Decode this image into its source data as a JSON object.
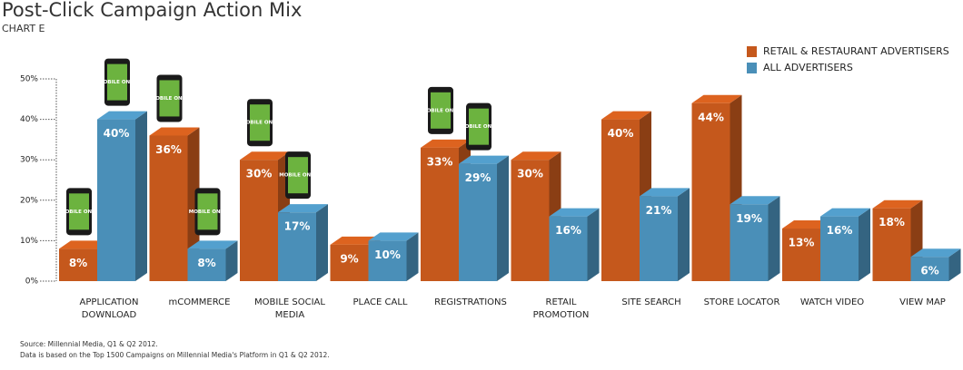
{
  "chart_data": {
    "type": "bar3d",
    "title": "Post-Click Campaign Action Mix",
    "subtitle": "CHART E",
    "categories": [
      "APPLICATION DOWNLOAD",
      "mCOMMERCE",
      "MOBILE SOCIAL MEDIA",
      "PLACE CALL",
      "REGISTRATIONS",
      "RETAIL PROMOTION",
      "SITE SEARCH",
      "STORE LOCATOR",
      "WATCH VIDEO",
      "VIEW MAP"
    ],
    "series": [
      {
        "name": "RETAIL & RESTAURANT ADVERTISERS",
        "color": "#c5581c",
        "values": [
          8,
          36,
          30,
          9,
          33,
          30,
          40,
          44,
          13,
          18
        ],
        "value_labels": [
          "8%",
          "36%",
          "30%",
          "9%",
          "33%",
          "30%",
          "40%",
          "44%",
          "13%",
          "18%"
        ],
        "mobile_only": [
          true,
          true,
          true,
          false,
          true,
          false,
          false,
          false,
          false,
          false
        ]
      },
      {
        "name": "ALL ADVERTISERS",
        "color": "#4a8fb8",
        "values": [
          40,
          8,
          17,
          10,
          29,
          16,
          21,
          19,
          16,
          6
        ],
        "value_labels": [
          "40%",
          "8%",
          "17%",
          "10%",
          "29%",
          "16%",
          "21%",
          "19%",
          "16%",
          "6%"
        ],
        "mobile_only": [
          true,
          true,
          true,
          false,
          true,
          false,
          false,
          false,
          false,
          false
        ]
      }
    ],
    "mobile_only_label": "MOBILE ONLY",
    "ylim": [
      0,
      50
    ],
    "yticks": [
      {
        "value": 0,
        "label": "0%"
      },
      {
        "value": 10,
        "label": "10%"
      },
      {
        "value": 20,
        "label": "20%"
      },
      {
        "value": 30,
        "label": "30%"
      },
      {
        "value": 40,
        "label": "40%"
      },
      {
        "value": 50,
        "label": "50%"
      }
    ],
    "grid": false,
    "legend": "top-right",
    "notes": [
      "Source: Millennial Media, Q1 & Q2 2012.",
      "Data is based on the Top 1500 Campaigns on Millennial Media's Platform in Q1 & Q2 2012."
    ]
  }
}
